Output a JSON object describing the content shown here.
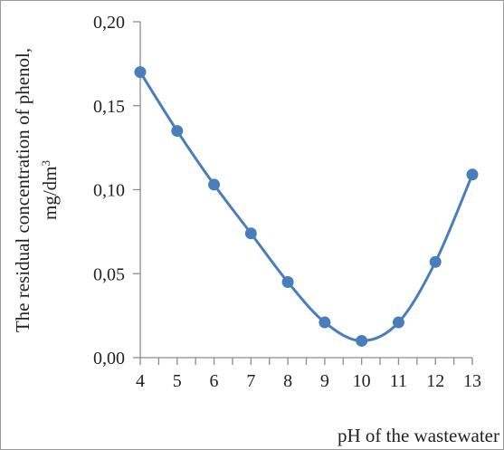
{
  "chart_data": {
    "type": "line",
    "xlabel": "pH of the wastewater",
    "ylabel_line1": "The residual concentration of phenol,",
    "ylabel_line2_base": "mg/dm",
    "ylabel_line2_sup": "3",
    "xlim": [
      4,
      13
    ],
    "ylim": [
      0,
      0.2
    ],
    "x_ticks": [
      4,
      5,
      6,
      7,
      8,
      9,
      10,
      11,
      12,
      13
    ],
    "x_tick_labels": [
      "4",
      "5",
      "6",
      "7",
      "8",
      "9",
      "10",
      "11",
      "12",
      "13"
    ],
    "y_ticks": [
      0,
      0.05,
      0.1,
      0.15,
      0.2
    ],
    "y_tick_labels": [
      "0,00",
      "0,05",
      "0,10",
      "0,15",
      "0,20"
    ],
    "grid": false,
    "smooth": true,
    "color": "#4a7ebb",
    "series": [
      {
        "x": [
          4,
          5,
          6,
          7,
          8,
          9,
          10,
          11,
          12,
          13
        ],
        "y": [
          0.17,
          0.135,
          0.103,
          0.074,
          0.045,
          0.021,
          0.01,
          0.021,
          0.057,
          0.109
        ]
      }
    ]
  }
}
